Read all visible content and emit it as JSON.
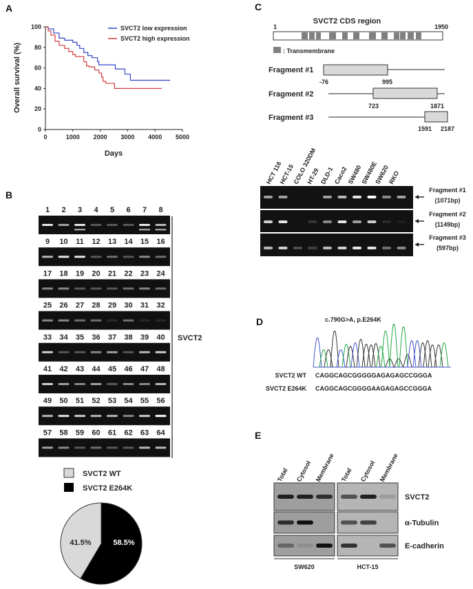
{
  "panels": {
    "a": "A",
    "b": "B",
    "c": "C",
    "d": "D",
    "e": "E"
  },
  "chart_data": [
    {
      "type": "line",
      "xlabel": "Days",
      "ylabel": "Overall survival (%)",
      "xlim": [
        0,
        5000
      ],
      "ylim": [
        0,
        100
      ],
      "xticks": [
        "0",
        "1000",
        "2000",
        "3000",
        "4000",
        "5000"
      ],
      "yticks": [
        "0",
        "20",
        "40",
        "60",
        "80",
        "100"
      ],
      "legend_position": "top-right",
      "series": [
        {
          "name": "SVCT2 low expression",
          "color": "#3344cc",
          "x": [
            0,
            100,
            300,
            500,
            700,
            1000,
            1100,
            1150,
            1250,
            1400,
            1550,
            1700,
            1900,
            1950,
            2500,
            2550,
            2850,
            2900,
            3050,
            3100,
            4550
          ],
          "y": [
            100,
            98,
            94,
            89,
            87,
            85,
            85,
            82,
            79,
            75,
            72,
            70,
            66,
            63,
            63,
            59,
            59,
            54,
            54,
            48,
            48
          ]
        },
        {
          "name": "SVCT2 high expression",
          "color": "#d43a3a",
          "x": [
            0,
            100,
            200,
            350,
            500,
            700,
            850,
            1000,
            1100,
            1350,
            1400,
            1500,
            1600,
            1800,
            1950,
            2050,
            2100,
            2200,
            2500,
            2520,
            4250
          ],
          "y": [
            100,
            96,
            92,
            86,
            82,
            79,
            76,
            73,
            71,
            71,
            66,
            62,
            61,
            58,
            55,
            51,
            47,
            45,
            45,
            40,
            40
          ]
        }
      ]
    },
    {
      "type": "pie",
      "slices": [
        {
          "name": "SVCT2 E264K",
          "value": 58.5,
          "label": "58.5%",
          "color": "#000000"
        },
        {
          "name": "SVCT2 WT",
          "value": 41.5,
          "label": "41.5%",
          "color": "#d9d9d9"
        }
      ]
    }
  ],
  "panel_b": {
    "lanes": [
      "1",
      "2",
      "3",
      "4",
      "5",
      "6",
      "7",
      "8",
      "9",
      "10",
      "11",
      "12",
      "13",
      "14",
      "15",
      "16",
      "17",
      "18",
      "19",
      "20",
      "21",
      "22",
      "23",
      "24",
      "25",
      "26",
      "27",
      "28",
      "29",
      "30",
      "31",
      "32",
      "33",
      "34",
      "35",
      "36",
      "37",
      "38",
      "39",
      "40",
      "41",
      "42",
      "43",
      "44",
      "45",
      "46",
      "47",
      "48",
      "49",
      "50",
      "51",
      "52",
      "53",
      "54",
      "55",
      "56",
      "57",
      "58",
      "59",
      "60",
      "61",
      "62",
      "63",
      "64"
    ],
    "label": "SVCT2"
  },
  "panel_c": {
    "title": "SVCT2 CDS region",
    "start": "1",
    "end": "1950",
    "legend": ": Transmembrane",
    "fragments": [
      {
        "name": "Fragment #1",
        "from": "-76",
        "to": "995"
      },
      {
        "name": "Fragment #2",
        "from": "723",
        "to": "1871"
      },
      {
        "name": "Fragment #3",
        "from": "1591",
        "to": "2187"
      }
    ],
    "cell_lines": [
      "HCT 116",
      "HCT-15",
      "COLO 320DM",
      "HT-29",
      "DLD-1",
      "Caco2",
      "SW480",
      "SW480E",
      "SW620",
      "RKO"
    ],
    "gel_labels": [
      {
        "name": "Fragment  #1",
        "size": "(1071bp)"
      },
      {
        "name": "Fragment  #2",
        "size": "(1149bp)"
      },
      {
        "name": "Fragment  #3",
        "size": "(597bp)"
      }
    ]
  },
  "panel_d": {
    "title": "c.790G>A, p.E264K",
    "rows": [
      {
        "label": "SVCT2 WT",
        "seq": "CAGGCAGCGGGGGAGAGAGCCGGGA"
      },
      {
        "label": "SVCT2 E264K",
        "seq": "CAGGCAGCGGGGAAGAGAGCCGGGA"
      }
    ]
  },
  "panel_e": {
    "fractions": [
      "Total",
      "Cytosol",
      "Membrane",
      "Total",
      "Cytosol",
      "Membrane"
    ],
    "proteins": [
      "SVCT2",
      "α-Tubulin",
      "E-cadherin"
    ],
    "cell_lines": [
      "SW620",
      "HCT-15"
    ]
  }
}
